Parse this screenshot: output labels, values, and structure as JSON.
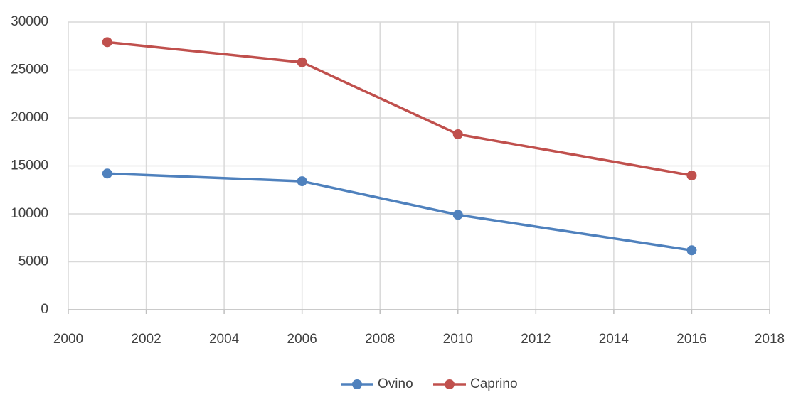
{
  "chart_data": {
    "type": "line",
    "x": [
      2001,
      2006,
      2010,
      2016
    ],
    "series": [
      {
        "name": "Ovino",
        "color": "#4f81bd",
        "values": [
          14200,
          13400,
          9900,
          6200
        ]
      },
      {
        "name": "Caprino",
        "color": "#c0504d",
        "values": [
          27900,
          25800,
          18300,
          14000
        ]
      }
    ],
    "xlim": [
      2000,
      2018
    ],
    "xticks": [
      2000,
      2002,
      2004,
      2006,
      2008,
      2010,
      2012,
      2014,
      2016,
      2018
    ],
    "ylim": [
      0,
      30000
    ],
    "yticks": [
      0,
      5000,
      10000,
      15000,
      20000,
      25000,
      30000
    ],
    "grid": true,
    "legend": "bottom"
  }
}
